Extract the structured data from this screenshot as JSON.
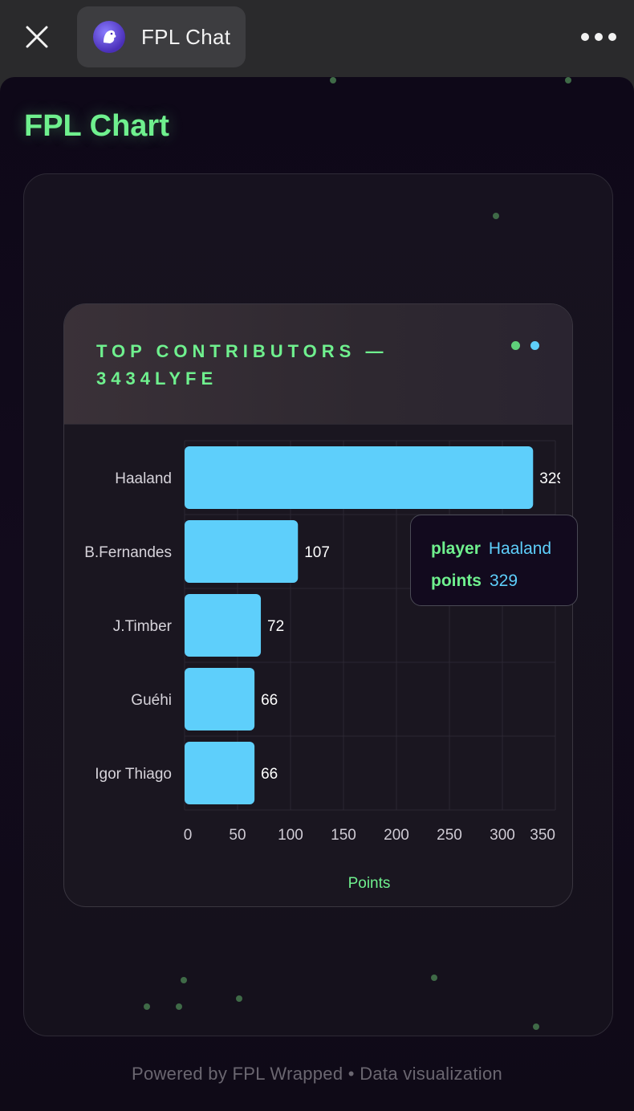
{
  "topbar": {
    "close_icon": "close-icon",
    "tab_title": "FPL Chat",
    "tab_icon": "premier-league-lion-icon",
    "more_icon": "more-horizontal-icon"
  },
  "page": {
    "title": "FPL Chat",
    "heading": "FPL Chart",
    "footer": "Powered by FPL Wrapped • Data visualization"
  },
  "colors": {
    "accent_green": "#6ff08e",
    "bar_blue": "#5ecffb",
    "header_dot_green": "#5fd07a",
    "header_dot_blue": "#5ecffb"
  },
  "chart_data": {
    "type": "bar",
    "orientation": "horizontal",
    "title": "TOP CONTRIBUTORS — 3434LYFE",
    "xlabel": "Points",
    "ylabel": "",
    "categories": [
      "Haaland",
      "B.Fernandes",
      "J.Timber",
      "Guéhi",
      "Igor Thiago"
    ],
    "values": [
      329,
      107,
      72,
      66,
      66
    ],
    "xlim": [
      0,
      350
    ],
    "xticks": [
      0,
      50,
      100,
      150,
      200,
      250,
      300,
      350
    ],
    "grid": true,
    "legend": "none"
  },
  "tooltip": {
    "player_label": "player",
    "player_value": "Haaland",
    "points_label": "points",
    "points_value": "329"
  }
}
